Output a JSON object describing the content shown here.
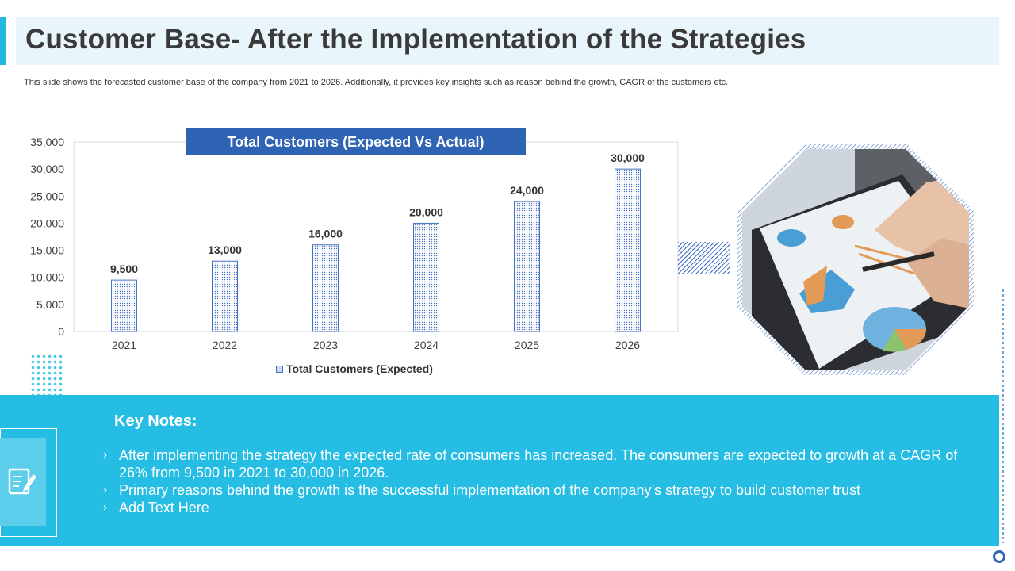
{
  "header": {
    "title": "Customer Base- After the Implementation of the Strategies",
    "subtitle": "This slide shows the forecasted customer base of the company from 2021 to 2026. Additionally, it provides key insights such as reason behind the growth, CAGR of the customers etc."
  },
  "chart_data": {
    "type": "bar",
    "title": "Total Customers (Expected Vs Actual)",
    "categories": [
      "2021",
      "2022",
      "2023",
      "2024",
      "2025",
      "2026"
    ],
    "series": [
      {
        "name": "Total Customers (Expected)",
        "values": [
          9500,
          13000,
          16000,
          20000,
          24000,
          30000
        ]
      }
    ],
    "data_labels": [
      "9,500",
      "13,000",
      "16,000",
      "20,000",
      "24,000",
      "30,000"
    ],
    "y_ticks": [
      "0",
      "5,000",
      "10,000",
      "15,000",
      "20,000",
      "25,000",
      "30,000",
      "35,000"
    ],
    "ylim": [
      0,
      35000
    ],
    "legend": "bottom",
    "grid": false,
    "bar_color": "#4472c4"
  },
  "key_notes": {
    "title": "Key Notes:",
    "items": [
      "After implementing the strategy the expected rate of consumers has increased. The consumers are expected to growth at a CAGR of 26% from 9,500 in 2021 to 30,000 in 2026.",
      "Primary reasons behind the growth is the successful implementation of the company’s strategy to build customer trust",
      "Add Text Here"
    ],
    "bullet_glyph": "›"
  },
  "icons": {
    "notes": "edit-note-icon",
    "photo": "tablet-analytics-photo"
  },
  "colors": {
    "accent": "#22b7e0",
    "panel": "#25bde3",
    "chart_title_bg": "#2f63b3"
  }
}
